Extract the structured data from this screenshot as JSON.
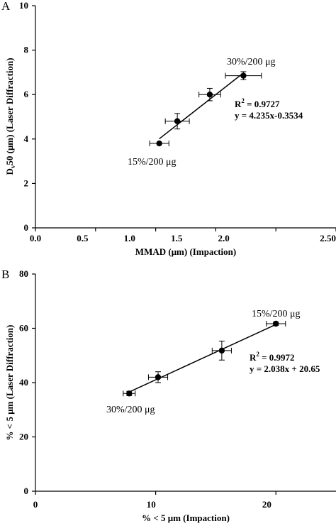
{
  "chart_data": [
    {
      "panel_label": "A",
      "type": "scatter",
      "xlabel": "MMAD (μm) (Impaction)",
      "ylabel_main": "D",
      "ylabel_sub": "v",
      "ylabel_rest": "50 (μm) (Laser Diffraction)",
      "xlim": [
        0,
        2.5
      ],
      "ylim": [
        0,
        10
      ],
      "x_ticks": [
        0.0,
        0.5,
        1.0,
        1.5,
        2.0,
        2.5
      ],
      "x_tick_labels": [
        "0.0",
        "0.5",
        "1.0",
        "1.5",
        "2.0",
        "2.50"
      ],
      "y_ticks": [
        0,
        2,
        4,
        6,
        8,
        10
      ],
      "y_tick_labels": [
        "0",
        "2",
        "4",
        "6",
        "8",
        "10"
      ],
      "points": [
        {
          "x": 1.03,
          "y": 3.8,
          "xerr": 0.08,
          "yerr": 0.0
        },
        {
          "x": 1.18,
          "y": 4.8,
          "xerr": 0.1,
          "yerr": 0.35
        },
        {
          "x": 1.45,
          "y": 6.0,
          "xerr": 0.09,
          "yerr": 0.28
        },
        {
          "x": 1.73,
          "y": 6.85,
          "xerr": 0.15,
          "yerr": 0.18
        }
      ],
      "fit": {
        "slope": 4.235,
        "intercept": -0.3534,
        "x_range": [
          1.03,
          1.73
        ]
      },
      "annotations": {
        "high_label": "30%/200 μg",
        "low_label": "15%/200 μg",
        "r2_prefix": "R",
        "r2_sup": "2",
        "r2_value": " = 0.9727",
        "equation": "y = 4.235x-0.3534"
      }
    },
    {
      "panel_label": "B",
      "type": "scatter",
      "xlabel": "% < 5 μm (Impaction)",
      "ylabel": "% < 5 μm (Laser Diffraction)",
      "xlim": [
        0,
        25
      ],
      "ylim": [
        0,
        80
      ],
      "x_ticks": [
        0,
        10,
        20
      ],
      "x_tick_labels": [
        "0",
        "10",
        "20"
      ],
      "y_ticks": [
        0,
        20,
        40,
        60,
        80
      ],
      "y_tick_labels": [
        "0",
        "20",
        "40",
        "60",
        "80"
      ],
      "points": [
        {
          "x": 7.8,
          "y": 36.0,
          "xerr": 0.5,
          "yerr": 0.8
        },
        {
          "x": 10.2,
          "y": 42.0,
          "xerr": 0.8,
          "yerr": 2.0
        },
        {
          "x": 15.5,
          "y": 51.8,
          "xerr": 0.8,
          "yerr": 3.5
        },
        {
          "x": 20.0,
          "y": 61.7,
          "xerr": 0.8,
          "yerr": 0.6
        }
      ],
      "fit": {
        "slope": 2.038,
        "intercept": 20.65,
        "x_range": [
          7.8,
          20.0
        ]
      },
      "annotations": {
        "high_label": "15%/200 μg",
        "low_label": "30%/200 μg",
        "r2_prefix": "R",
        "r2_sup": "2",
        "r2_value": " = 0.9972",
        "equation": "y = 2.038x + 20.65"
      }
    }
  ]
}
